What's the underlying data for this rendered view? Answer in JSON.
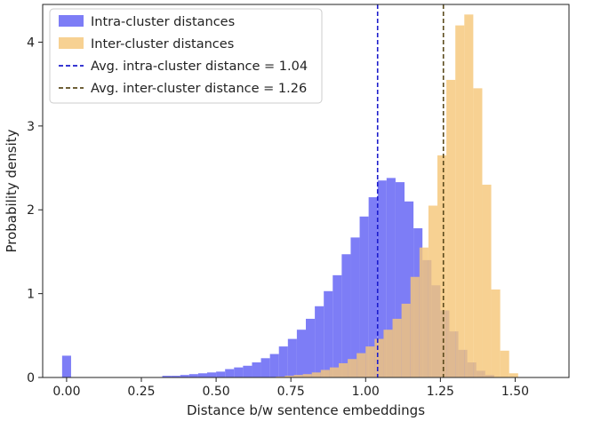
{
  "chart_data": {
    "type": "histogram",
    "xlabel": "Distance b/w sentence embeddings",
    "ylabel": "Probability density",
    "xlim": [
      -0.08,
      1.68
    ],
    "ylim": [
      0,
      4.45
    ],
    "xticks": [
      0.0,
      0.25,
      0.5,
      0.75,
      1.0,
      1.25,
      1.5
    ],
    "xtick_labels": [
      "0.00",
      "0.25",
      "0.50",
      "0.75",
      "1.00",
      "1.25",
      "1.50"
    ],
    "yticks": [
      0,
      1,
      2,
      3,
      4
    ],
    "ytick_labels": [
      "0",
      "1",
      "2",
      "3",
      "4"
    ],
    "grid": false,
    "legend_position": "top-left",
    "series": [
      {
        "name": "Intra-cluster distances",
        "color": "#6b6bf5",
        "opacity": 0.88,
        "bins": [
          [
            -0.015,
            0.015,
            0.26
          ],
          [
            0.32,
            0.35,
            0.02
          ],
          [
            0.35,
            0.38,
            0.02
          ],
          [
            0.38,
            0.41,
            0.03
          ],
          [
            0.41,
            0.44,
            0.04
          ],
          [
            0.44,
            0.47,
            0.05
          ],
          [
            0.47,
            0.5,
            0.06
          ],
          [
            0.5,
            0.53,
            0.07
          ],
          [
            0.53,
            0.56,
            0.1
          ],
          [
            0.56,
            0.59,
            0.12
          ],
          [
            0.59,
            0.62,
            0.14
          ],
          [
            0.62,
            0.65,
            0.18
          ],
          [
            0.65,
            0.68,
            0.23
          ],
          [
            0.68,
            0.71,
            0.28
          ],
          [
            0.71,
            0.74,
            0.37
          ],
          [
            0.74,
            0.77,
            0.46
          ],
          [
            0.77,
            0.8,
            0.57
          ],
          [
            0.8,
            0.83,
            0.7
          ],
          [
            0.83,
            0.86,
            0.85
          ],
          [
            0.86,
            0.89,
            1.03
          ],
          [
            0.89,
            0.92,
            1.22
          ],
          [
            0.92,
            0.95,
            1.47
          ],
          [
            0.95,
            0.98,
            1.67
          ],
          [
            0.98,
            1.01,
            1.92
          ],
          [
            1.01,
            1.04,
            2.15
          ],
          [
            1.04,
            1.07,
            2.35
          ],
          [
            1.07,
            1.1,
            2.38
          ],
          [
            1.1,
            1.13,
            2.33
          ],
          [
            1.13,
            1.16,
            2.1
          ],
          [
            1.16,
            1.19,
            1.78
          ],
          [
            1.19,
            1.22,
            1.4
          ],
          [
            1.22,
            1.25,
            1.1
          ],
          [
            1.25,
            1.28,
            0.8
          ],
          [
            1.28,
            1.31,
            0.55
          ],
          [
            1.31,
            1.34,
            0.33
          ],
          [
            1.34,
            1.37,
            0.18
          ],
          [
            1.37,
            1.4,
            0.08
          ],
          [
            1.4,
            1.43,
            0.03
          ]
        ]
      },
      {
        "name": "Inter-cluster distances",
        "color": "#f5c77a",
        "opacity": 0.82,
        "bins": [
          [
            0.7,
            0.73,
            0.01
          ],
          [
            0.73,
            0.76,
            0.02
          ],
          [
            0.76,
            0.79,
            0.03
          ],
          [
            0.79,
            0.82,
            0.04
          ],
          [
            0.82,
            0.85,
            0.06
          ],
          [
            0.85,
            0.88,
            0.09
          ],
          [
            0.88,
            0.91,
            0.12
          ],
          [
            0.91,
            0.94,
            0.17
          ],
          [
            0.94,
            0.97,
            0.22
          ],
          [
            0.97,
            1.0,
            0.29
          ],
          [
            1.0,
            1.03,
            0.37
          ],
          [
            1.03,
            1.06,
            0.46
          ],
          [
            1.06,
            1.09,
            0.57
          ],
          [
            1.09,
            1.12,
            0.7
          ],
          [
            1.12,
            1.15,
            0.88
          ],
          [
            1.15,
            1.18,
            1.2
          ],
          [
            1.18,
            1.21,
            1.55
          ],
          [
            1.21,
            1.24,
            2.05
          ],
          [
            1.24,
            1.27,
            2.65
          ],
          [
            1.27,
            1.3,
            3.55
          ],
          [
            1.3,
            1.33,
            4.2
          ],
          [
            1.33,
            1.36,
            4.33
          ],
          [
            1.36,
            1.39,
            3.45
          ],
          [
            1.39,
            1.42,
            2.3
          ],
          [
            1.42,
            1.45,
            1.05
          ],
          [
            1.45,
            1.48,
            0.32
          ],
          [
            1.48,
            1.51,
            0.05
          ]
        ]
      }
    ],
    "vlines": [
      {
        "name": "Avg. intra-cluster distance = 1.04",
        "x": 1.04,
        "color": "#1c1ccc",
        "dash": "dashed"
      },
      {
        "name": "Avg. inter-cluster distance = 1.26",
        "x": 1.26,
        "color": "#5b4a1c",
        "dash": "dashed"
      }
    ]
  }
}
